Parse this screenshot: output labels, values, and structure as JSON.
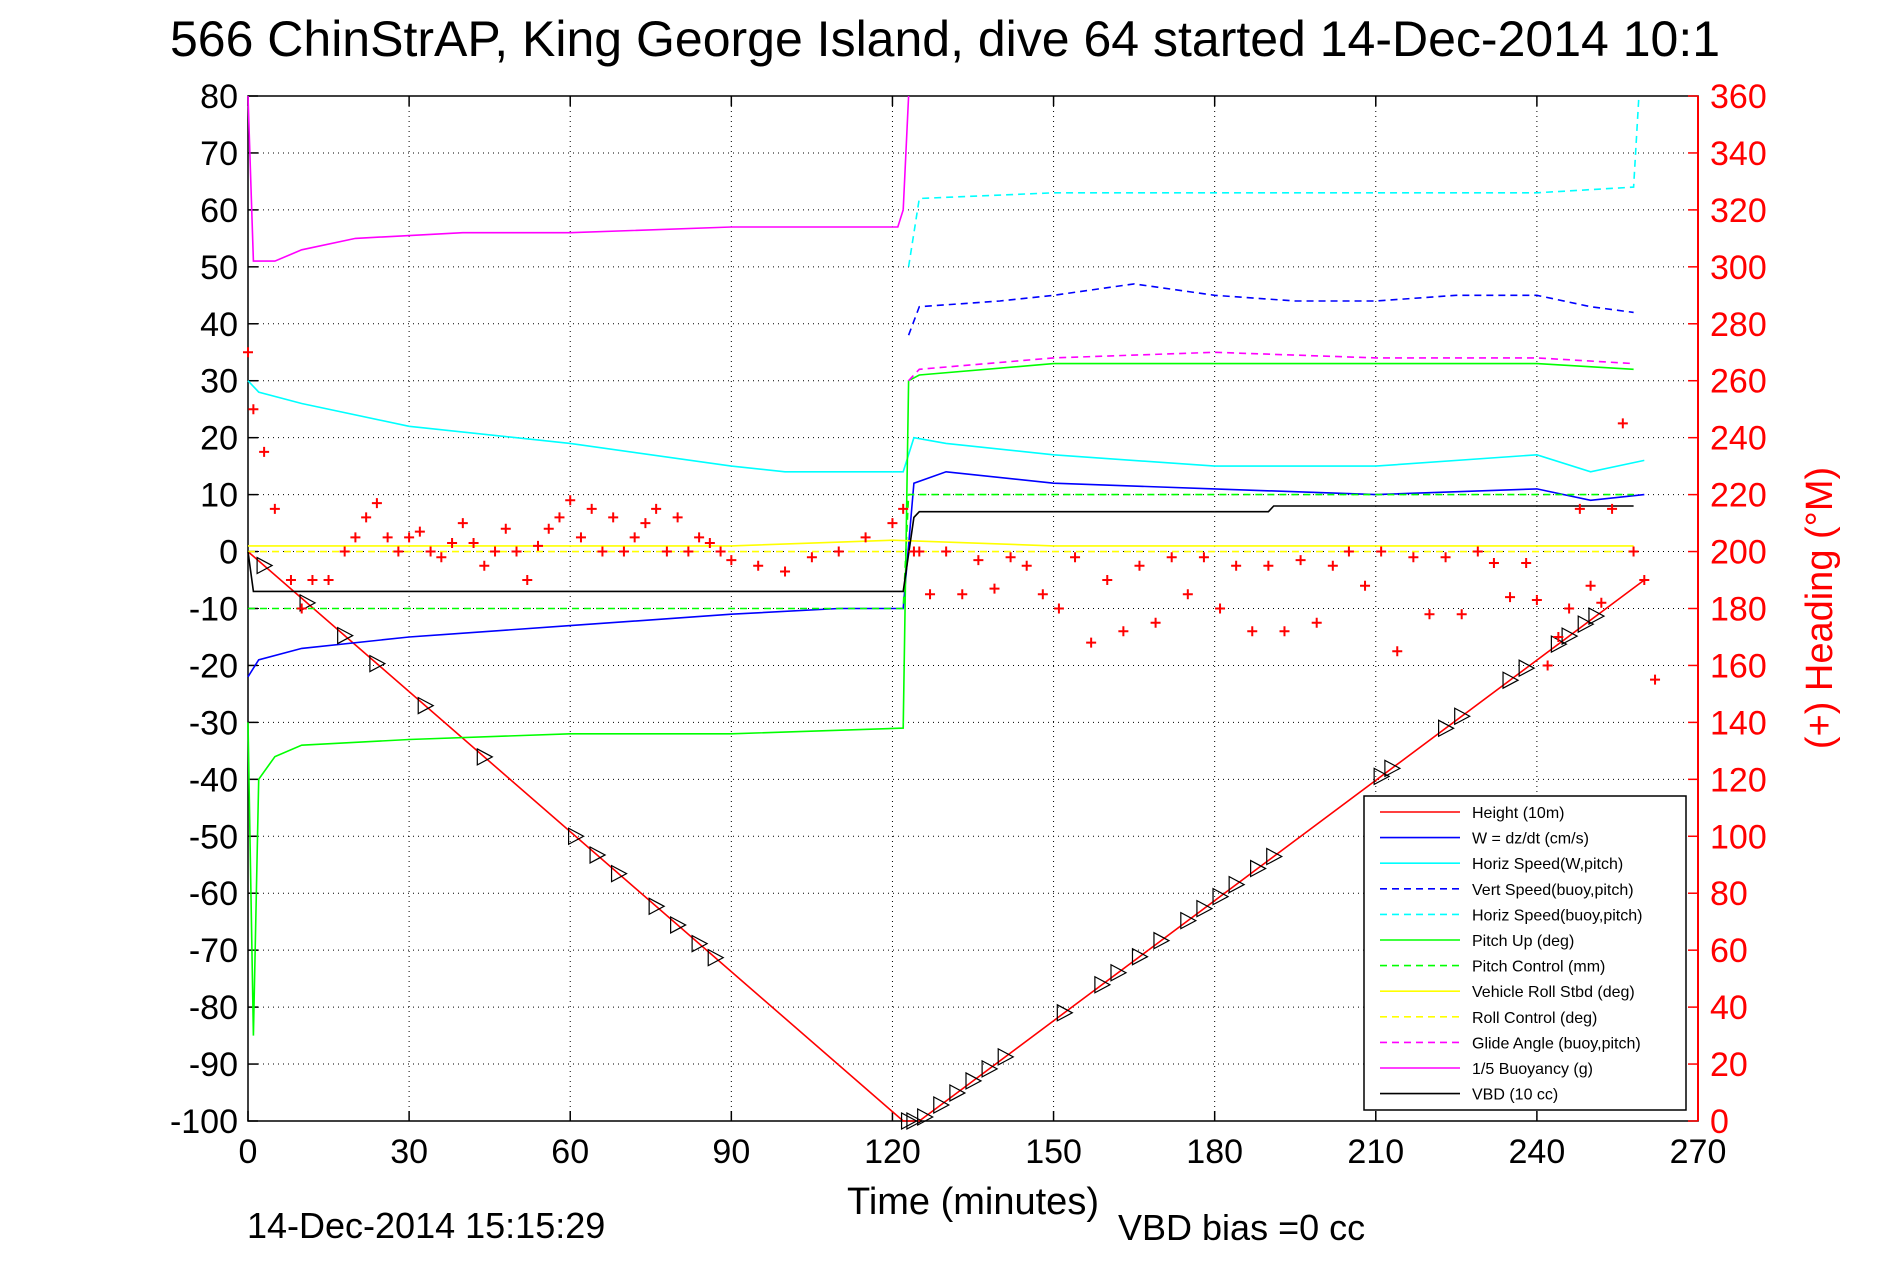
{
  "figure": {
    "title": "566 ChinStrAP, King George Island, dive 64 started 14-Dec-2014 10:1",
    "timestamp": "14-Dec-2014 15:15:29",
    "footnote": "VBD bias =0 cc"
  },
  "colors": {
    "background": "#ffffff",
    "axis": "#000000",
    "right_axis": "#ff0000",
    "grid": "#000000"
  },
  "chart_data": {
    "type": "line",
    "title": "566 ChinStrAP, King George Island, dive 64 started 14-Dec-2014 10:1",
    "xlabel": "Time (minutes)",
    "ylabel": "",
    "y2label": "(+) Heading (°M)",
    "xlim": [
      0,
      270
    ],
    "ylim": [
      -100,
      80
    ],
    "y2lim": [
      0,
      360
    ],
    "xticks": [
      0,
      30,
      60,
      90,
      120,
      150,
      180,
      210,
      240,
      270
    ],
    "yticks": [
      -100,
      -90,
      -80,
      -70,
      -60,
      -50,
      -40,
      -30,
      -20,
      -10,
      0,
      10,
      20,
      30,
      40,
      50,
      60,
      70,
      80
    ],
    "y2ticks": [
      0,
      20,
      40,
      60,
      80,
      100,
      120,
      140,
      160,
      180,
      200,
      220,
      240,
      260,
      280,
      300,
      320,
      340,
      360
    ],
    "grid": true,
    "legend_position": "lower-right",
    "series": [
      {
        "name": "Height (10m)",
        "color": "#ff0000",
        "style": "solid",
        "x": [
          0,
          122,
          125,
          260
        ],
        "y": [
          0,
          -100,
          -100,
          -5
        ]
      },
      {
        "name": "W = dz/dt (cm/s)",
        "color": "#0000ff",
        "style": "solid",
        "x": [
          0,
          2,
          10,
          30,
          60,
          90,
          110,
          122,
          124,
          130,
          150,
          180,
          210,
          240,
          250,
          260
        ],
        "y": [
          -22,
          -19,
          -17,
          -15,
          -13,
          -11,
          -10,
          -10,
          12,
          14,
          12,
          11,
          10,
          11,
          9,
          10
        ]
      },
      {
        "name": "Horiz Speed(W,pitch)",
        "color": "#00ffff",
        "style": "solid",
        "x": [
          0,
          2,
          10,
          30,
          60,
          90,
          100,
          122,
          124,
          130,
          150,
          180,
          210,
          240,
          250,
          260
        ],
        "y": [
          30,
          28,
          26,
          22,
          19,
          15,
          14,
          14,
          20,
          19,
          17,
          15,
          15,
          17,
          14,
          16
        ]
      },
      {
        "name": "Vert Speed(buoy,pitch)",
        "color": "#0000ff",
        "style": "dashed",
        "x": [
          123,
          125,
          140,
          150,
          165,
          180,
          195,
          210,
          225,
          240,
          250,
          258
        ],
        "y": [
          38,
          43,
          44,
          45,
          47,
          45,
          44,
          44,
          45,
          45,
          43,
          42
        ]
      },
      {
        "name": "Horiz Speed(buoy,pitch)",
        "color": "#00ffff",
        "style": "dashed",
        "x": [
          123,
          125,
          150,
          180,
          210,
          240,
          258,
          259
        ],
        "y": [
          50,
          62,
          63,
          63,
          63,
          63,
          64,
          80
        ]
      },
      {
        "name": "Pitch Up (deg)",
        "color": "#00ff00",
        "style": "solid",
        "x": [
          0,
          1,
          2,
          5,
          10,
          30,
          60,
          90,
          122,
          123,
          125,
          150,
          180,
          210,
          240,
          258
        ],
        "y": [
          -30,
          -85,
          -40,
          -36,
          -34,
          -33,
          -32,
          -32,
          -31,
          30,
          31,
          33,
          33,
          33,
          33,
          32
        ]
      },
      {
        "name": "Pitch Control (mm)",
        "color": "#00ff00",
        "style": "dashed",
        "x": [
          0,
          122,
          123,
          258
        ],
        "y": [
          -10,
          -10,
          10,
          10
        ]
      },
      {
        "name": "Vehicle Roll Stbd (deg)",
        "color": "#ffff00",
        "style": "solid",
        "x": [
          0,
          30,
          60,
          90,
          120,
          150,
          180,
          210,
          240,
          258
        ],
        "y": [
          1,
          1,
          1,
          1,
          2,
          1,
          1,
          1,
          1,
          1
        ]
      },
      {
        "name": "Roll Control (deg)",
        "color": "#ffff00",
        "style": "dashed",
        "x": [
          0,
          30,
          60,
          90,
          120,
          150,
          180,
          210,
          240,
          258
        ],
        "y": [
          0,
          0,
          0,
          0,
          0,
          0,
          0,
          0,
          0,
          0
        ]
      },
      {
        "name": "Glide Angle (buoy,pitch)",
        "color": "#ff00ff",
        "style": "dashed",
        "x": [
          123,
          125,
          150,
          180,
          210,
          240,
          258
        ],
        "y": [
          30,
          32,
          34,
          35,
          34,
          34,
          33
        ]
      },
      {
        "name": "1/5 Buoyancy (g)",
        "color": "#ff00ff",
        "style": "solid",
        "x": [
          0,
          1,
          5,
          10,
          20,
          40,
          60,
          90,
          121,
          122,
          123
        ],
        "y": [
          80,
          51,
          51,
          53,
          55,
          56,
          56,
          57,
          57,
          60,
          80
        ]
      },
      {
        "name": "VBD (10 cc)",
        "color": "#000000",
        "style": "solid",
        "x": [
          0,
          1,
          122,
          124,
          125,
          190,
          191,
          258
        ],
        "y": [
          0,
          -7,
          -7,
          6,
          7,
          7,
          8,
          8
        ]
      }
    ],
    "heading_series": {
      "name": "(+) Heading",
      "color": "#ff0000",
      "marker": "+",
      "x": [
        0,
        1,
        3,
        5,
        8,
        10,
        12,
        15,
        18,
        20,
        22,
        24,
        26,
        28,
        30,
        32,
        34,
        36,
        38,
        40,
        42,
        44,
        46,
        48,
        50,
        52,
        54,
        56,
        58,
        60,
        62,
        64,
        66,
        68,
        70,
        72,
        74,
        76,
        78,
        80,
        82,
        84,
        86,
        88,
        90,
        95,
        100,
        105,
        110,
        115,
        120,
        122,
        124,
        125,
        127,
        130,
        133,
        136,
        139,
        142,
        145,
        148,
        151,
        154,
        157,
        160,
        163,
        166,
        169,
        172,
        175,
        178,
        181,
        184,
        187,
        190,
        193,
        196,
        199,
        202,
        205,
        208,
        211,
        214,
        217,
        220,
        223,
        226,
        229,
        232,
        235,
        238,
        240,
        242,
        244,
        246,
        248,
        250,
        252,
        254,
        256,
        258,
        260,
        262
      ],
      "y": [
        270,
        250,
        235,
        215,
        190,
        180,
        190,
        190,
        200,
        205,
        212,
        217,
        205,
        200,
        205,
        207,
        200,
        198,
        203,
        210,
        203,
        195,
        200,
        208,
        200,
        190,
        202,
        208,
        212,
        218,
        205,
        215,
        200,
        212,
        200,
        205,
        210,
        215,
        200,
        212,
        200,
        205,
        203,
        200,
        197,
        195,
        193,
        198,
        200,
        205,
        210,
        215,
        200,
        200,
        185,
        200,
        185,
        197,
        187,
        198,
        195,
        185,
        180,
        198,
        168,
        190,
        172,
        195,
        175,
        198,
        185,
        198,
        180,
        195,
        172,
        195,
        172,
        197,
        175,
        195,
        200,
        188,
        200,
        165,
        198,
        178,
        198,
        178,
        200,
        196,
        184,
        196,
        183,
        160,
        170,
        180,
        215,
        188,
        182,
        215,
        245,
        200,
        190,
        155
      ]
    }
  }
}
